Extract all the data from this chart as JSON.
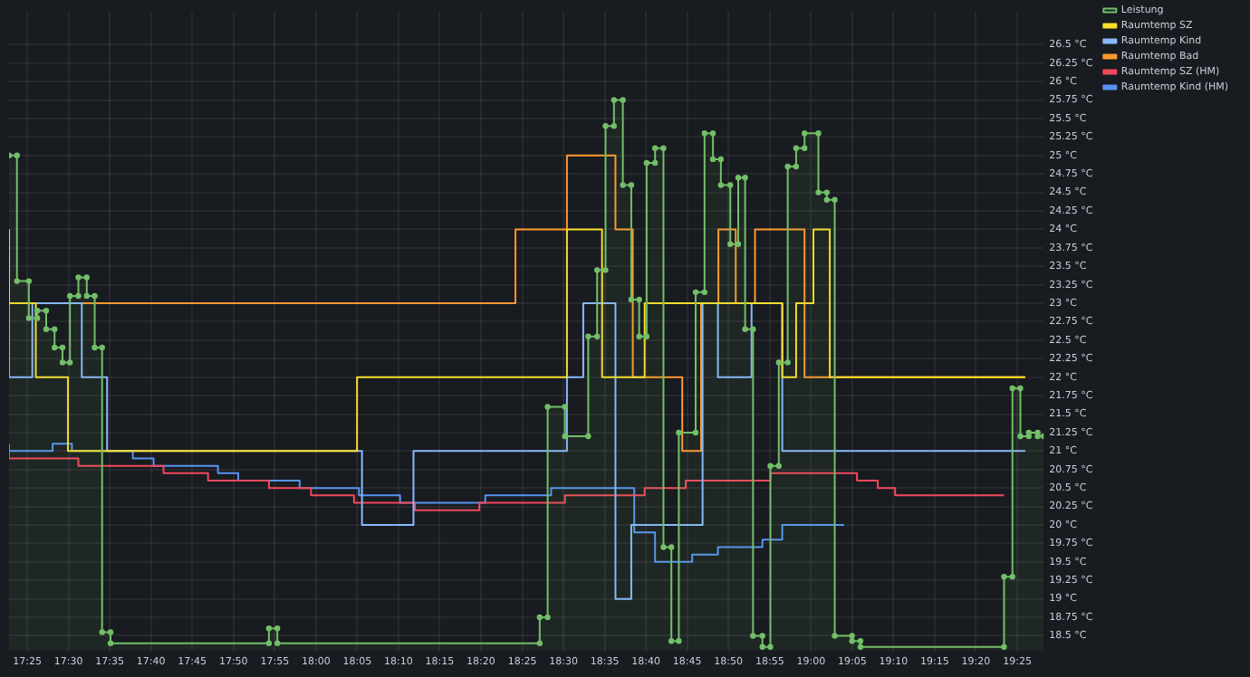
{
  "chart_data": {
    "type": "step",
    "xlim": [
      17.38,
      19.47
    ],
    "ylim": [
      18.3,
      26.95
    ],
    "xticks": [
      {
        "value": 17.4167,
        "label": "17:25"
      },
      {
        "value": 17.5,
        "label": "17:30"
      },
      {
        "value": 17.5833,
        "label": "17:35"
      },
      {
        "value": 17.6667,
        "label": "17:40"
      },
      {
        "value": 17.75,
        "label": "17:45"
      },
      {
        "value": 17.8333,
        "label": "17:50"
      },
      {
        "value": 17.9167,
        "label": "17:55"
      },
      {
        "value": 18,
        "label": "18:00"
      },
      {
        "value": 18.0833,
        "label": "18:05"
      },
      {
        "value": 18.1667,
        "label": "18:10"
      },
      {
        "value": 18.25,
        "label": "18:15"
      },
      {
        "value": 18.3333,
        "label": "18:20"
      },
      {
        "value": 18.4167,
        "label": "18:25"
      },
      {
        "value": 18.5,
        "label": "18:30"
      },
      {
        "value": 18.5833,
        "label": "18:35"
      },
      {
        "value": 18.6667,
        "label": "18:40"
      },
      {
        "value": 18.75,
        "label": "18:45"
      },
      {
        "value": 18.8333,
        "label": "18:50"
      },
      {
        "value": 18.9167,
        "label": "18:55"
      },
      {
        "value": 19,
        "label": "19:00"
      },
      {
        "value": 19.0833,
        "label": "19:05"
      },
      {
        "value": 19.1667,
        "label": "19:10"
      },
      {
        "value": 19.25,
        "label": "19:15"
      },
      {
        "value": 19.3333,
        "label": "19:20"
      },
      {
        "value": 19.4167,
        "label": "19:25"
      }
    ],
    "yticks": [
      {
        "value": 18.5,
        "label": "18.5 °C"
      },
      {
        "value": 18.75,
        "label": "18.75 °C"
      },
      {
        "value": 19,
        "label": "19 °C"
      },
      {
        "value": 19.25,
        "label": "19.25 °C"
      },
      {
        "value": 19.5,
        "label": "19.5 °C"
      },
      {
        "value": 19.75,
        "label": "19.75 °C"
      },
      {
        "value": 20,
        "label": "20 °C"
      },
      {
        "value": 20.25,
        "label": "20.25 °C"
      },
      {
        "value": 20.5,
        "label": "20.5 °C"
      },
      {
        "value": 20.75,
        "label": "20.75 °C"
      },
      {
        "value": 21,
        "label": "21 °C"
      },
      {
        "value": 21.25,
        "label": "21.25 °C"
      },
      {
        "value": 21.5,
        "label": "21.5 °C"
      },
      {
        "value": 21.75,
        "label": "21.75 °C"
      },
      {
        "value": 22,
        "label": "22 °C"
      },
      {
        "value": 22.25,
        "label": "22.25 °C"
      },
      {
        "value": 22.5,
        "label": "22.5 °C"
      },
      {
        "value": 22.75,
        "label": "22.75 °C"
      },
      {
        "value": 23,
        "label": "23 °C"
      },
      {
        "value": 23.25,
        "label": "23.25 °C"
      },
      {
        "value": 23.5,
        "label": "23.5 °C"
      },
      {
        "value": 23.75,
        "label": "23.75 °C"
      },
      {
        "value": 24,
        "label": "24 °C"
      },
      {
        "value": 24.25,
        "label": "24.25 °C"
      },
      {
        "value": 24.5,
        "label": "24.5 °C"
      },
      {
        "value": 24.75,
        "label": "24.75 °C"
      },
      {
        "value": 25,
        "label": "25 °C"
      },
      {
        "value": 25.25,
        "label": "25.25 °C"
      },
      {
        "value": 25.5,
        "label": "25.5 °C"
      },
      {
        "value": 25.75,
        "label": "25.75 °C"
      },
      {
        "value": 26,
        "label": "26 °C"
      },
      {
        "value": 26.25,
        "label": "26.25 °C"
      },
      {
        "value": 26.5,
        "label": "26.5 °C"
      }
    ],
    "grid": true,
    "legend": "top right",
    "series": [
      {
        "name": "Leistung",
        "type": "area",
        "marker": "circle",
        "color": "#73bf69",
        "x": [
          17.38,
          17.396,
          17.396,
          17.42,
          17.42,
          17.437,
          17.437,
          17.455,
          17.455,
          17.472,
          17.472,
          17.488,
          17.488,
          17.503,
          17.503,
          17.52,
          17.52,
          17.537,
          17.537,
          17.553,
          17.553,
          17.568,
          17.568,
          17.585,
          17.585,
          17.905,
          17.905,
          17.922,
          17.922,
          18.452,
          18.452,
          18.468,
          18.468,
          18.503,
          18.503,
          18.55,
          18.55,
          18.568,
          18.568,
          18.585,
          18.585,
          18.602,
          18.602,
          18.62,
          18.62,
          18.637,
          18.637,
          18.653,
          18.653,
          18.668,
          18.668,
          18.685,
          18.685,
          18.702,
          18.702,
          18.718,
          18.718,
          18.733,
          18.733,
          18.767,
          18.767,
          18.785,
          18.785,
          18.802,
          18.802,
          18.818,
          18.818,
          18.837,
          18.837,
          18.853,
          18.853,
          18.867,
          18.867,
          18.883,
          18.883,
          18.902,
          18.902,
          18.918,
          18.918,
          18.935,
          18.935,
          18.953,
          18.953,
          18.97,
          18.97,
          18.987,
          18.987,
          19.015,
          19.015,
          19.032,
          19.032,
          19.048,
          19.048,
          19.083,
          19.083,
          19.1,
          19.1,
          19.39,
          19.39,
          19.407,
          19.407,
          19.423,
          19.423,
          19.44,
          19.44,
          19.458,
          19.458,
          19.47
        ],
        "values": [
          25.0,
          25.0,
          23.3,
          23.3,
          22.8,
          22.8,
          22.9,
          22.9,
          22.65,
          22.65,
          22.4,
          22.4,
          22.2,
          22.2,
          23.1,
          23.1,
          23.35,
          23.35,
          23.1,
          23.1,
          22.4,
          22.4,
          18.55,
          18.55,
          18.4,
          18.4,
          18.6,
          18.6,
          18.4,
          18.4,
          18.75,
          18.75,
          21.6,
          21.6,
          21.2,
          21.2,
          22.55,
          22.55,
          23.45,
          23.45,
          25.4,
          25.4,
          25.75,
          25.75,
          24.6,
          24.6,
          23.05,
          23.05,
          22.55,
          22.55,
          24.9,
          24.9,
          25.1,
          25.1,
          19.7,
          19.7,
          18.43,
          18.43,
          21.25,
          21.25,
          23.15,
          23.15,
          25.3,
          25.3,
          24.95,
          24.95,
          24.6,
          24.6,
          23.8,
          23.8,
          24.7,
          24.7,
          22.65,
          22.65,
          18.5,
          18.5,
          18.35,
          18.35,
          20.8,
          20.8,
          22.2,
          22.2,
          24.85,
          24.85,
          25.1,
          25.1,
          25.3,
          25.3,
          24.5,
          24.5,
          24.4,
          24.4,
          18.5,
          18.5,
          18.43,
          18.43,
          18.35,
          18.35,
          19.3,
          19.3,
          21.85,
          21.85,
          21.2,
          21.2,
          21.25,
          21.25,
          21.2,
          21.2
        ]
      },
      {
        "name": "Raumtemp SZ",
        "color": "#fade2a",
        "x": [
          17.38,
          17.434,
          17.499,
          18.083,
          18.507,
          18.578,
          18.664,
          18.942,
          18.97,
          19.005,
          19.038,
          19.07,
          19.433
        ],
        "values": [
          24,
          23,
          22,
          21,
          22,
          24,
          22,
          23,
          22,
          23,
          24,
          22,
          22
        ]
      },
      {
        "name": "Raumtemp Kind",
        "color": "#8ab8ff",
        "x": [
          17.38,
          17.427,
          17.527,
          17.578,
          18.093,
          18.197,
          18.507,
          18.54,
          18.605,
          18.637,
          18.781,
          18.812,
          18.88,
          18.942,
          19.005,
          19.433
        ],
        "values": [
          23,
          22,
          23,
          22,
          21,
          20,
          21,
          22,
          23,
          19,
          20,
          23,
          22,
          23,
          21,
          21
        ]
      },
      {
        "name": "Raumtemp Bad",
        "color": "#ff9830",
        "x": [
          17.38,
          18.403,
          18.507,
          18.605,
          18.64,
          18.74,
          18.778,
          18.813,
          18.848,
          18.887,
          18.987,
          19.02,
          19.433
        ],
        "values": [
          24,
          23,
          24,
          25,
          24,
          22,
          21,
          23,
          24,
          23,
          24,
          22,
          22
        ]
      },
      {
        "name": "Raumtemp SZ (HM)",
        "color": "#f2495c",
        "x": [
          17.38,
          17.52,
          17.692,
          17.782,
          17.905,
          17.99,
          18.077,
          18.2,
          18.33,
          18.503,
          18.664,
          18.747,
          18.918,
          19.093,
          19.135,
          19.17,
          19.303,
          19.39
        ],
        "values": [
          21.0,
          20.9,
          20.8,
          20.7,
          20.6,
          20.5,
          20.4,
          20.3,
          20.2,
          20.3,
          20.4,
          20.5,
          20.6,
          20.7,
          20.6,
          20.5,
          20.4,
          20.4
        ]
      },
      {
        "name": "Raumtemp Kind (HM)",
        "color": "#5794f2",
        "x": [
          17.38,
          17.468,
          17.507,
          17.63,
          17.672,
          17.802,
          17.843,
          17.967,
          18.087,
          18.17,
          18.342,
          18.475,
          18.643,
          18.685,
          18.76,
          18.812,
          18.902,
          18.942,
          18.977,
          19.067
        ],
        "values": [
          21.1,
          21.0,
          21.1,
          21.0,
          20.9,
          20.8,
          20.7,
          20.6,
          20.5,
          20.4,
          20.3,
          20.4,
          20.5,
          19.9,
          19.5,
          19.6,
          19.7,
          19.8,
          20.0,
          20.0
        ]
      }
    ]
  }
}
